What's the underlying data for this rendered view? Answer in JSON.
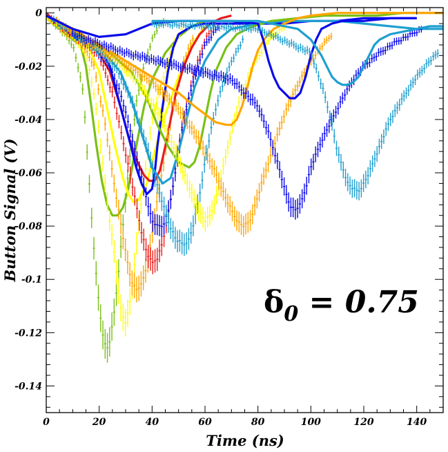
{
  "chart_data": {
    "type": "line",
    "title": "",
    "xlabel": "Time (ns)",
    "ylabel": "Button Signal (V)",
    "xlim": [
      0,
      150
    ],
    "ylim": [
      -0.15,
      0.002
    ],
    "xticks": [
      "0",
      "20",
      "40",
      "60",
      "80",
      "100",
      "120",
      "140"
    ],
    "yticks": [
      "0",
      "-0.02",
      "-0.04",
      "-0.06",
      "-0.08",
      "-0.1",
      "-0.12",
      "-0.14"
    ],
    "grid": false,
    "legend": "none",
    "annotation": {
      "symbol": "δ",
      "subscript": "0",
      "text": " = 0.75"
    },
    "series": [
      {
        "color": "#7ac017",
        "style": "points",
        "t0": 1,
        "tmin": 14,
        "tmax": 45,
        "dip": -0.03,
        "x": [
          1,
          4,
          7,
          10,
          12,
          14,
          15,
          16,
          17,
          18,
          19,
          20,
          21,
          22,
          23,
          24,
          25,
          26,
          27,
          28,
          29,
          30,
          31,
          32,
          33,
          34,
          36,
          38,
          40,
          42,
          45
        ],
        "y": [
          -0.002,
          -0.005,
          -0.008,
          -0.012,
          -0.02,
          -0.03,
          -0.045,
          -0.06,
          -0.075,
          -0.088,
          -0.1,
          -0.11,
          -0.118,
          -0.124,
          -0.126,
          -0.123,
          -0.117,
          -0.11,
          -0.1,
          -0.09,
          -0.08,
          -0.07,
          -0.06,
          -0.05,
          -0.042,
          -0.034,
          -0.024,
          -0.016,
          -0.01,
          -0.006,
          -0.002
        ]
      },
      {
        "color": "#7ac017",
        "style": "line",
        "x": [
          0,
          5,
          10,
          13,
          15,
          17,
          19,
          21,
          23,
          25,
          27,
          29,
          31,
          33,
          35,
          37,
          40,
          45,
          50,
          55,
          60
        ],
        "y": [
          -0.002,
          -0.006,
          -0.01,
          -0.012,
          -0.02,
          -0.035,
          -0.05,
          -0.063,
          -0.072,
          -0.076,
          -0.076,
          -0.073,
          -0.066,
          -0.055,
          -0.045,
          -0.035,
          -0.025,
          -0.015,
          -0.009,
          -0.005,
          -0.003
        ]
      },
      {
        "color": "#ffff00",
        "style": "points",
        "x": [
          1,
          6,
          11,
          15,
          18,
          20,
          22,
          24,
          26,
          27,
          28,
          29,
          30,
          31,
          32,
          33,
          34,
          36,
          38,
          40,
          44,
          48,
          52
        ],
        "y": [
          -0.002,
          -0.006,
          -0.01,
          -0.015,
          -0.03,
          -0.045,
          -0.062,
          -0.078,
          -0.092,
          -0.102,
          -0.11,
          -0.114,
          -0.116,
          -0.112,
          -0.106,
          -0.098,
          -0.088,
          -0.07,
          -0.055,
          -0.04,
          -0.025,
          -0.012,
          -0.005
        ]
      },
      {
        "color": "#ffff00",
        "style": "line",
        "x": [
          0,
          6,
          12,
          16,
          20,
          23,
          26,
          29,
          31,
          33,
          35,
          38,
          41,
          45,
          50,
          55,
          60
        ],
        "y": [
          -0.002,
          -0.006,
          -0.011,
          -0.013,
          -0.022,
          -0.036,
          -0.05,
          -0.062,
          -0.068,
          -0.071,
          -0.07,
          -0.064,
          -0.052,
          -0.038,
          -0.024,
          -0.012,
          -0.005
        ]
      },
      {
        "color": "#ffa500",
        "style": "points",
        "x": [
          1,
          8,
          14,
          18,
          22,
          25,
          28,
          30,
          32,
          34,
          36,
          38,
          40,
          42,
          45,
          48,
          52,
          56
        ],
        "y": [
          -0.002,
          -0.008,
          -0.012,
          -0.02,
          -0.04,
          -0.06,
          -0.078,
          -0.09,
          -0.1,
          -0.104,
          -0.102,
          -0.095,
          -0.083,
          -0.07,
          -0.052,
          -0.035,
          -0.018,
          -0.008
        ]
      },
      {
        "color": "#e81c1c",
        "style": "line",
        "x": [
          0,
          4,
          8,
          12,
          16,
          20,
          24,
          28,
          31,
          34,
          37,
          39,
          41,
          43,
          45,
          47,
          49,
          52,
          55,
          58,
          62,
          66,
          70
        ],
        "y": [
          0,
          -0.004,
          -0.007,
          -0.01,
          -0.012,
          -0.015,
          -0.022,
          -0.035,
          -0.046,
          -0.055,
          -0.061,
          -0.063,
          -0.063,
          -0.059,
          -0.05,
          -0.04,
          -0.03,
          -0.02,
          -0.013,
          -0.008,
          -0.004,
          -0.002,
          -0.001
        ]
      },
      {
        "color": "#e81c1c",
        "style": "points",
        "x": [
          2,
          8,
          14,
          20,
          25,
          29,
          32,
          34,
          36,
          38,
          40,
          42,
          44,
          46,
          48,
          50,
          53,
          56,
          60,
          64
        ],
        "y": [
          -0.002,
          -0.007,
          -0.011,
          -0.016,
          -0.03,
          -0.048,
          -0.062,
          -0.072,
          -0.082,
          -0.09,
          -0.094,
          -0.092,
          -0.086,
          -0.076,
          -0.064,
          -0.05,
          -0.035,
          -0.022,
          -0.01,
          -0.004
        ]
      },
      {
        "color": "#0a0aeb",
        "style": "line",
        "x": [
          0,
          8,
          16,
          20,
          24,
          28,
          32,
          34,
          36,
          38,
          40,
          41,
          42,
          44,
          46,
          48,
          50,
          55,
          60,
          70,
          80,
          90,
          100,
          110,
          120,
          130,
          140
        ],
        "y": [
          -0.001,
          -0.006,
          -0.011,
          -0.013,
          -0.02,
          -0.035,
          -0.05,
          -0.058,
          -0.064,
          -0.068,
          -0.066,
          -0.06,
          -0.05,
          -0.035,
          -0.022,
          -0.013,
          -0.008,
          -0.005,
          -0.004,
          -0.004,
          -0.004,
          -0.004,
          -0.003,
          -0.003,
          -0.002,
          -0.002,
          -0.002
        ]
      },
      {
        "color": "#0a0aeb",
        "style": "points",
        "x": [
          2,
          10,
          18,
          24,
          28,
          32,
          35,
          38,
          40,
          42,
          44,
          46,
          48,
          50,
          52,
          56,
          60,
          65
        ],
        "y": [
          -0.002,
          -0.008,
          -0.013,
          -0.02,
          -0.03,
          -0.045,
          -0.058,
          -0.07,
          -0.078,
          -0.08,
          -0.08,
          -0.075,
          -0.065,
          -0.052,
          -0.04,
          -0.024,
          -0.012,
          -0.005
        ]
      },
      {
        "color": "#1e9fd0",
        "style": "line",
        "x": [
          0,
          8,
          16,
          22,
          28,
          32,
          36,
          40,
          44,
          47,
          50,
          53,
          56,
          60,
          65,
          70,
          80,
          90,
          100,
          110,
          120,
          130,
          140,
          150
        ],
        "y": [
          -0.001,
          -0.006,
          -0.011,
          -0.015,
          -0.022,
          -0.032,
          -0.045,
          -0.058,
          -0.064,
          -0.062,
          -0.052,
          -0.04,
          -0.028,
          -0.018,
          -0.01,
          -0.006,
          -0.004,
          -0.003,
          -0.003,
          -0.003,
          -0.004,
          -0.005,
          -0.006,
          -0.006
        ]
      },
      {
        "color": "#1e9fd0",
        "style": "points",
        "x": [
          2,
          10,
          18,
          26,
          32,
          38,
          42,
          46,
          49,
          52,
          54,
          56,
          58,
          60,
          62,
          65,
          70,
          75
        ],
        "y": [
          -0.002,
          -0.008,
          -0.013,
          -0.02,
          -0.032,
          -0.05,
          -0.065,
          -0.078,
          -0.085,
          -0.087,
          -0.085,
          -0.078,
          -0.068,
          -0.056,
          -0.045,
          -0.032,
          -0.018,
          -0.009
        ]
      },
      {
        "color": "#7ac017",
        "style": "line",
        "x": [
          0,
          8,
          16,
          24,
          32,
          38,
          42,
          46,
          50,
          54,
          56,
          58,
          60,
          62,
          64,
          68,
          72,
          78,
          85,
          95,
          105,
          115,
          125,
          135,
          145,
          150
        ],
        "y": [
          -0.001,
          -0.005,
          -0.01,
          -0.015,
          -0.022,
          -0.032,
          -0.042,
          -0.05,
          -0.056,
          -0.058,
          -0.056,
          -0.05,
          -0.04,
          -0.03,
          -0.022,
          -0.013,
          -0.008,
          -0.005,
          -0.003,
          -0.002,
          -0.001,
          -0.001,
          -0.001,
          0,
          0,
          0
        ]
      },
      {
        "color": "#ffff00",
        "style": "points",
        "x": [
          4,
          14,
          24,
          34,
          44,
          50,
          55,
          58,
          60,
          62,
          64,
          66,
          68,
          70,
          74,
          78,
          84,
          90
        ],
        "y": [
          -0.003,
          -0.01,
          -0.016,
          -0.025,
          -0.04,
          -0.055,
          -0.068,
          -0.075,
          -0.078,
          -0.076,
          -0.07,
          -0.062,
          -0.053,
          -0.044,
          -0.03,
          -0.02,
          -0.01,
          -0.005
        ]
      },
      {
        "color": "#ffa500",
        "style": "line",
        "x": [
          0,
          10,
          20,
          30,
          40,
          50,
          56,
          60,
          64,
          68,
          70,
          72,
          74,
          76,
          78,
          80,
          83,
          86,
          90,
          95,
          100,
          110,
          120,
          130,
          140,
          150
        ],
        "y": [
          -0.001,
          -0.006,
          -0.012,
          -0.018,
          -0.024,
          -0.03,
          -0.035,
          -0.038,
          -0.041,
          -0.042,
          -0.042,
          -0.04,
          -0.035,
          -0.028,
          -0.02,
          -0.014,
          -0.009,
          -0.006,
          -0.004,
          -0.002,
          -0.001,
          0,
          0,
          0,
          0,
          0
        ]
      },
      {
        "color": "#ffa500",
        "style": "points",
        "x": [
          4,
          16,
          28,
          40,
          50,
          58,
          64,
          68,
          71,
          73,
          75,
          77,
          79,
          82,
          86,
          90,
          96,
          102,
          108
        ],
        "y": [
          -0.003,
          -0.011,
          -0.018,
          -0.026,
          -0.036,
          -0.048,
          -0.06,
          -0.07,
          -0.076,
          -0.079,
          -0.08,
          -0.078,
          -0.072,
          -0.062,
          -0.05,
          -0.038,
          -0.025,
          -0.015,
          -0.008
        ]
      },
      {
        "color": "#0a0aeb",
        "style": "line",
        "x": [
          0,
          10,
          20,
          30,
          40,
          50,
          60,
          70,
          80,
          82,
          84,
          86,
          88,
          90,
          92,
          94,
          96,
          98,
          100,
          102,
          104,
          108,
          112,
          120,
          130,
          140
        ],
        "y": [
          -0.001,
          -0.006,
          -0.009,
          -0.008,
          -0.004,
          -0.003,
          -0.003,
          -0.003,
          -0.004,
          -0.01,
          -0.018,
          -0.024,
          -0.028,
          -0.03,
          -0.032,
          -0.032,
          -0.03,
          -0.024,
          -0.016,
          -0.01,
          -0.006,
          -0.004,
          -0.003,
          -0.003,
          -0.002,
          -0.002
        ]
      },
      {
        "color": "#0a0aeb",
        "style": "points",
        "x": [
          10,
          30,
          50,
          70,
          80,
          84,
          88,
          90,
          92,
          94,
          96,
          98,
          100,
          104,
          108,
          112,
          116,
          120,
          126,
          132,
          138,
          142
        ],
        "y": [
          -0.008,
          -0.015,
          -0.02,
          -0.025,
          -0.035,
          -0.045,
          -0.058,
          -0.066,
          -0.072,
          -0.074,
          -0.072,
          -0.066,
          -0.058,
          -0.048,
          -0.04,
          -0.032,
          -0.025,
          -0.02,
          -0.015,
          -0.011,
          -0.008,
          -0.006
        ]
      },
      {
        "color": "#1e9fd0",
        "style": "line",
        "x": [
          40,
          60,
          80,
          95,
          100,
          104,
          106,
          108,
          110,
          112,
          114,
          116,
          118,
          120,
          122,
          124,
          126,
          128,
          130,
          135,
          140,
          145,
          150
        ],
        "y": [
          -0.003,
          -0.003,
          -0.003,
          -0.006,
          -0.01,
          -0.016,
          -0.02,
          -0.024,
          -0.026,
          -0.027,
          -0.027,
          -0.026,
          -0.024,
          -0.02,
          -0.016,
          -0.012,
          -0.01,
          -0.009,
          -0.008,
          -0.007,
          -0.006,
          -0.005,
          -0.005
        ]
      },
      {
        "color": "#1e9fd0",
        "style": "points",
        "x": [
          40,
          80,
          100,
          105,
          108,
          110,
          112,
          114,
          116,
          118,
          120,
          122,
          124,
          126,
          128,
          130,
          133,
          136,
          140,
          144,
          148
        ],
        "y": [
          -0.004,
          -0.006,
          -0.015,
          -0.03,
          -0.042,
          -0.052,
          -0.058,
          -0.064,
          -0.066,
          -0.067,
          -0.064,
          -0.06,
          -0.055,
          -0.05,
          -0.045,
          -0.04,
          -0.035,
          -0.03,
          -0.024,
          -0.019,
          -0.015
        ]
      }
    ]
  }
}
